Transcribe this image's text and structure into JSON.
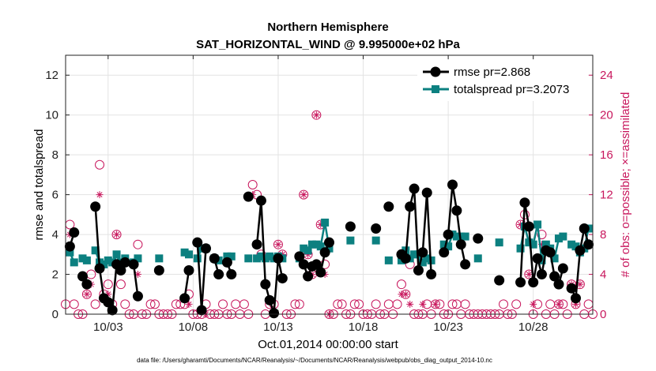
{
  "chart_data": {
    "type": "line",
    "title": "Northern Hemisphere",
    "subtitle": "SAT_HORIZONTAL_WIND @ 9.995000e+02 hPa",
    "xlabel": "Oct.01,2014 00:00:00 start",
    "ylabel": "rmse and totalspread",
    "ylabel_right": "# of obs: o=possible; ×=assimilated",
    "footer": "data file: /Users/gharamti/Documents/NCAR/Reanalysis/~/Documents/NCAR/Reanalysis/webpub/obs_diag_output_2014-10.nc",
    "xlim": [
      0.5,
      31.5
    ],
    "ylim": [
      0,
      13
    ],
    "ylim_right": [
      0,
      26
    ],
    "x_ticks": [
      3,
      8,
      13,
      18,
      23,
      28
    ],
    "x_tick_labels": [
      "10/03",
      "10/08",
      "10/13",
      "10/18",
      "10/23",
      "10/28"
    ],
    "y_ticks": [
      0,
      2,
      4,
      6,
      8,
      10,
      12
    ],
    "y_ticks_right": [
      0,
      4,
      8,
      12,
      16,
      20,
      24
    ],
    "grid": true,
    "legend_position": "top-right",
    "series": [
      {
        "name": "rmse pr=2.868",
        "color": "#000000",
        "marker": "circle",
        "points": [
          [
            0.75,
            3.4
          ],
          [
            1.0,
            4.1
          ],
          [
            1.5,
            1.9
          ],
          [
            1.75,
            1.5
          ],
          [
            2.25,
            5.4
          ],
          [
            2.5,
            2.3
          ],
          [
            2.75,
            0.8
          ],
          [
            3.0,
            0.6
          ],
          [
            3.25,
            0.2
          ],
          [
            3.5,
            2.5
          ],
          [
            3.75,
            2.2
          ],
          [
            4.0,
            2.6
          ],
          [
            4.5,
            2.5
          ],
          [
            4.75,
            0.9
          ],
          [
            6.0,
            2.2
          ],
          [
            7.5,
            0.8
          ],
          [
            7.75,
            2.2
          ],
          [
            8.25,
            3.6
          ],
          [
            8.5,
            0.2
          ],
          [
            8.75,
            3.3
          ],
          [
            9.25,
            2.8
          ],
          [
            9.5,
            2.0
          ],
          [
            10.0,
            2.6
          ],
          [
            10.25,
            2.0
          ],
          [
            11.25,
            5.9
          ],
          [
            11.75,
            3.5
          ],
          [
            12.0,
            5.7
          ],
          [
            12.25,
            1.5
          ],
          [
            12.5,
            0.7
          ],
          [
            12.75,
            0.05
          ],
          [
            13.0,
            2.8
          ],
          [
            13.25,
            1.8
          ],
          [
            14.25,
            2.9
          ],
          [
            14.5,
            2.5
          ],
          [
            14.75,
            1.9
          ],
          [
            15.0,
            2.4
          ],
          [
            15.25,
            2.5
          ],
          [
            15.5,
            2.1
          ],
          [
            15.75,
            3.1
          ],
          [
            16.0,
            3.6
          ],
          [
            17.25,
            4.4
          ],
          [
            18.75,
            4.3
          ],
          [
            19.5,
            5.4
          ],
          [
            20.25,
            3.0
          ],
          [
            20.5,
            2.8
          ],
          [
            20.75,
            5.4
          ],
          [
            21.0,
            6.3
          ],
          [
            21.25,
            2.2
          ],
          [
            21.5,
            3.1
          ],
          [
            21.75,
            6.1
          ],
          [
            22.0,
            2.0
          ],
          [
            22.75,
            3.1
          ],
          [
            23.0,
            4.0
          ],
          [
            23.25,
            6.5
          ],
          [
            23.5,
            5.2
          ],
          [
            23.75,
            3.5
          ],
          [
            24.0,
            2.5
          ],
          [
            24.75,
            3.8
          ],
          [
            26.0,
            1.7
          ],
          [
            27.25,
            1.6
          ],
          [
            27.5,
            5.6
          ],
          [
            27.75,
            4.4
          ],
          [
            28.0,
            1.6
          ],
          [
            28.25,
            2.8
          ],
          [
            28.5,
            2.0
          ],
          [
            28.75,
            3.2
          ],
          [
            29.0,
            3.1
          ],
          [
            29.25,
            1.9
          ],
          [
            29.5,
            1.5
          ],
          [
            29.75,
            2.3
          ],
          [
            30.25,
            1.3
          ],
          [
            30.5,
            0.8
          ],
          [
            30.75,
            3.2
          ],
          [
            31.0,
            4.3
          ],
          [
            31.25,
            3.5
          ]
        ]
      },
      {
        "name": "totalspread pr=3.2073",
        "color": "#0c8080",
        "marker": "square",
        "points": [
          [
            0.75,
            3.1
          ],
          [
            1.0,
            2.6
          ],
          [
            1.5,
            2.8
          ],
          [
            1.75,
            2.7
          ],
          [
            2.25,
            3.2
          ],
          [
            2.5,
            2.6
          ],
          [
            2.75,
            2.5
          ],
          [
            3.0,
            2.7
          ],
          [
            3.25,
            2.6
          ],
          [
            3.5,
            3.0
          ],
          [
            3.75,
            2.6
          ],
          [
            4.0,
            2.8
          ],
          [
            4.5,
            2.6
          ],
          [
            4.75,
            2.8
          ],
          [
            6.0,
            2.8
          ],
          [
            7.5,
            3.1
          ],
          [
            7.75,
            3.0
          ],
          [
            8.25,
            2.8
          ],
          [
            8.5,
            3.3
          ],
          [
            8.75,
            3.3
          ],
          [
            9.25,
            2.8
          ],
          [
            9.5,
            2.7
          ],
          [
            10.0,
            2.9
          ],
          [
            10.25,
            2.9
          ],
          [
            11.25,
            2.8
          ],
          [
            11.75,
            2.8
          ],
          [
            12.0,
            2.9
          ],
          [
            12.25,
            2.8
          ],
          [
            12.5,
            2.9
          ],
          [
            12.75,
            2.8
          ],
          [
            13.0,
            2.9
          ],
          [
            13.25,
            2.8
          ],
          [
            14.25,
            2.8
          ],
          [
            14.5,
            3.3
          ],
          [
            14.75,
            3.2
          ],
          [
            15.0,
            3.5
          ],
          [
            15.25,
            3.5
          ],
          [
            15.5,
            3.4
          ],
          [
            15.75,
            4.6
          ],
          [
            16.0,
            3.3
          ],
          [
            17.25,
            3.7
          ],
          [
            18.75,
            3.7
          ],
          [
            19.5,
            2.7
          ],
          [
            20.25,
            2.7
          ],
          [
            20.5,
            3.2
          ],
          [
            20.75,
            2.8
          ],
          [
            21.0,
            3.0
          ],
          [
            21.25,
            3.0
          ],
          [
            21.5,
            2.6
          ],
          [
            21.75,
            2.8
          ],
          [
            22.0,
            2.7
          ],
          [
            22.75,
            3.5
          ],
          [
            23.0,
            3.4
          ],
          [
            23.25,
            4.0
          ],
          [
            23.5,
            3.9
          ],
          [
            23.75,
            3.9
          ],
          [
            24.0,
            3.9
          ],
          [
            24.75,
            2.8
          ],
          [
            26.0,
            3.6
          ],
          [
            27.25,
            3.3
          ],
          [
            27.5,
            4.4
          ],
          [
            27.75,
            3.6
          ],
          [
            28.0,
            3.5
          ],
          [
            28.25,
            4.5
          ],
          [
            28.5,
            2.7
          ],
          [
            28.75,
            3.5
          ],
          [
            29.0,
            3.3
          ],
          [
            29.25,
            2.8
          ],
          [
            29.5,
            3.8
          ],
          [
            29.75,
            3.9
          ],
          [
            30.25,
            3.5
          ],
          [
            30.5,
            3.4
          ],
          [
            30.75,
            3.1
          ],
          [
            31.0,
            3.3
          ],
          [
            31.25,
            4.3
          ]
        ]
      }
    ],
    "obs_possible": [
      [
        0.5,
        1
      ],
      [
        0.75,
        9
      ],
      [
        1.0,
        1
      ],
      [
        1.25,
        0
      ],
      [
        1.5,
        0
      ],
      [
        1.75,
        2
      ],
      [
        2.0,
        4
      ],
      [
        2.25,
        1
      ],
      [
        2.5,
        15
      ],
      [
        2.75,
        2
      ],
      [
        3.0,
        3
      ],
      [
        3.25,
        1
      ],
      [
        3.5,
        8
      ],
      [
        3.75,
        3
      ],
      [
        4.0,
        1
      ],
      [
        4.25,
        0
      ],
      [
        4.5,
        0
      ],
      [
        4.75,
        7
      ],
      [
        5.0,
        0
      ],
      [
        5.25,
        0
      ],
      [
        5.5,
        1
      ],
      [
        5.75,
        1
      ],
      [
        6.0,
        0
      ],
      [
        6.25,
        0
      ],
      [
        6.5,
        0
      ],
      [
        6.75,
        0
      ],
      [
        7.0,
        1
      ],
      [
        7.25,
        1
      ],
      [
        7.5,
        1
      ],
      [
        7.75,
        2
      ],
      [
        8.0,
        0
      ],
      [
        8.25,
        0
      ],
      [
        8.5,
        0
      ],
      [
        8.75,
        1
      ],
      [
        9.0,
        0
      ],
      [
        9.25,
        0
      ],
      [
        9.5,
        0
      ],
      [
        9.75,
        1
      ],
      [
        10.0,
        0
      ],
      [
        10.25,
        0
      ],
      [
        10.5,
        1
      ],
      [
        10.75,
        0
      ],
      [
        11.0,
        1
      ],
      [
        11.25,
        0
      ],
      [
        11.5,
        13
      ],
      [
        11.75,
        12
      ],
      [
        12.0,
        6
      ],
      [
        12.25,
        0
      ],
      [
        12.5,
        1
      ],
      [
        12.75,
        1
      ],
      [
        13.0,
        7
      ],
      [
        13.25,
        6
      ],
      [
        13.5,
        0
      ],
      [
        13.75,
        0
      ],
      [
        14.0,
        1
      ],
      [
        14.25,
        1
      ],
      [
        14.5,
        12
      ],
      [
        14.75,
        6
      ],
      [
        15.0,
        4
      ],
      [
        15.25,
        20
      ],
      [
        15.5,
        9
      ],
      [
        15.75,
        5
      ],
      [
        16.0,
        0
      ],
      [
        16.25,
        0
      ],
      [
        16.5,
        1
      ],
      [
        16.75,
        1
      ],
      [
        17.0,
        0
      ],
      [
        17.25,
        0
      ],
      [
        17.5,
        1
      ],
      [
        17.75,
        1
      ],
      [
        18.0,
        0
      ],
      [
        18.25,
        0
      ],
      [
        18.5,
        0
      ],
      [
        18.75,
        1
      ],
      [
        19.0,
        0
      ],
      [
        19.25,
        0
      ],
      [
        19.5,
        1
      ],
      [
        19.75,
        0
      ],
      [
        20.0,
        1
      ],
      [
        20.25,
        3
      ],
      [
        20.5,
        2
      ],
      [
        20.75,
        5
      ],
      [
        21.0,
        0
      ],
      [
        21.25,
        0
      ],
      [
        21.5,
        0
      ],
      [
        21.75,
        1
      ],
      [
        22.0,
        0
      ],
      [
        22.25,
        1
      ],
      [
        22.5,
        1
      ],
      [
        22.75,
        0
      ],
      [
        23.0,
        0
      ],
      [
        23.25,
        1
      ],
      [
        23.5,
        1
      ],
      [
        23.75,
        0
      ],
      [
        24.0,
        1
      ],
      [
        24.25,
        0
      ],
      [
        24.5,
        0
      ],
      [
        24.75,
        0
      ],
      [
        25.0,
        0
      ],
      [
        25.25,
        0
      ],
      [
        25.5,
        0
      ],
      [
        25.75,
        0
      ],
      [
        26.0,
        0
      ],
      [
        26.25,
        1
      ],
      [
        26.5,
        0
      ],
      [
        26.75,
        0
      ],
      [
        27.0,
        1
      ],
      [
        27.25,
        9
      ],
      [
        27.5,
        10
      ],
      [
        27.75,
        4
      ],
      [
        28.0,
        0
      ],
      [
        28.25,
        1
      ],
      [
        28.5,
        8
      ],
      [
        28.75,
        0
      ],
      [
        29.0,
        1
      ],
      [
        29.25,
        0
      ],
      [
        29.5,
        1
      ],
      [
        29.75,
        1
      ],
      [
        30.0,
        0
      ],
      [
        30.25,
        3
      ],
      [
        30.5,
        1
      ],
      [
        30.75,
        3
      ],
      [
        31.0,
        0
      ],
      [
        31.25,
        1
      ],
      [
        31.5,
        0
      ]
    ],
    "obs_assimilated": [
      [
        0.75,
        8
      ],
      [
        1.75,
        2
      ],
      [
        2.0,
        3
      ],
      [
        2.5,
        12
      ],
      [
        3.0,
        2
      ],
      [
        3.5,
        8
      ],
      [
        4.75,
        4
      ],
      [
        7.75,
        1
      ],
      [
        8.75,
        0
      ],
      [
        11.5,
        12
      ],
      [
        12.75,
        0
      ],
      [
        13.0,
        7
      ],
      [
        13.25,
        6
      ],
      [
        14.5,
        12
      ],
      [
        14.75,
        6
      ],
      [
        15.0,
        4
      ],
      [
        15.25,
        20
      ],
      [
        15.5,
        9
      ],
      [
        15.75,
        4
      ],
      [
        16.0,
        0
      ],
      [
        20.25,
        2
      ],
      [
        20.5,
        2
      ],
      [
        20.75,
        1
      ],
      [
        21.5,
        1
      ],
      [
        22.25,
        1
      ],
      [
        27.25,
        9
      ],
      [
        27.5,
        9
      ],
      [
        27.75,
        4
      ],
      [
        28.0,
        1
      ],
      [
        28.5,
        7
      ],
      [
        29.5,
        1
      ],
      [
        30.25,
        3
      ],
      [
        30.5,
        1
      ],
      [
        30.75,
        3
      ]
    ]
  }
}
